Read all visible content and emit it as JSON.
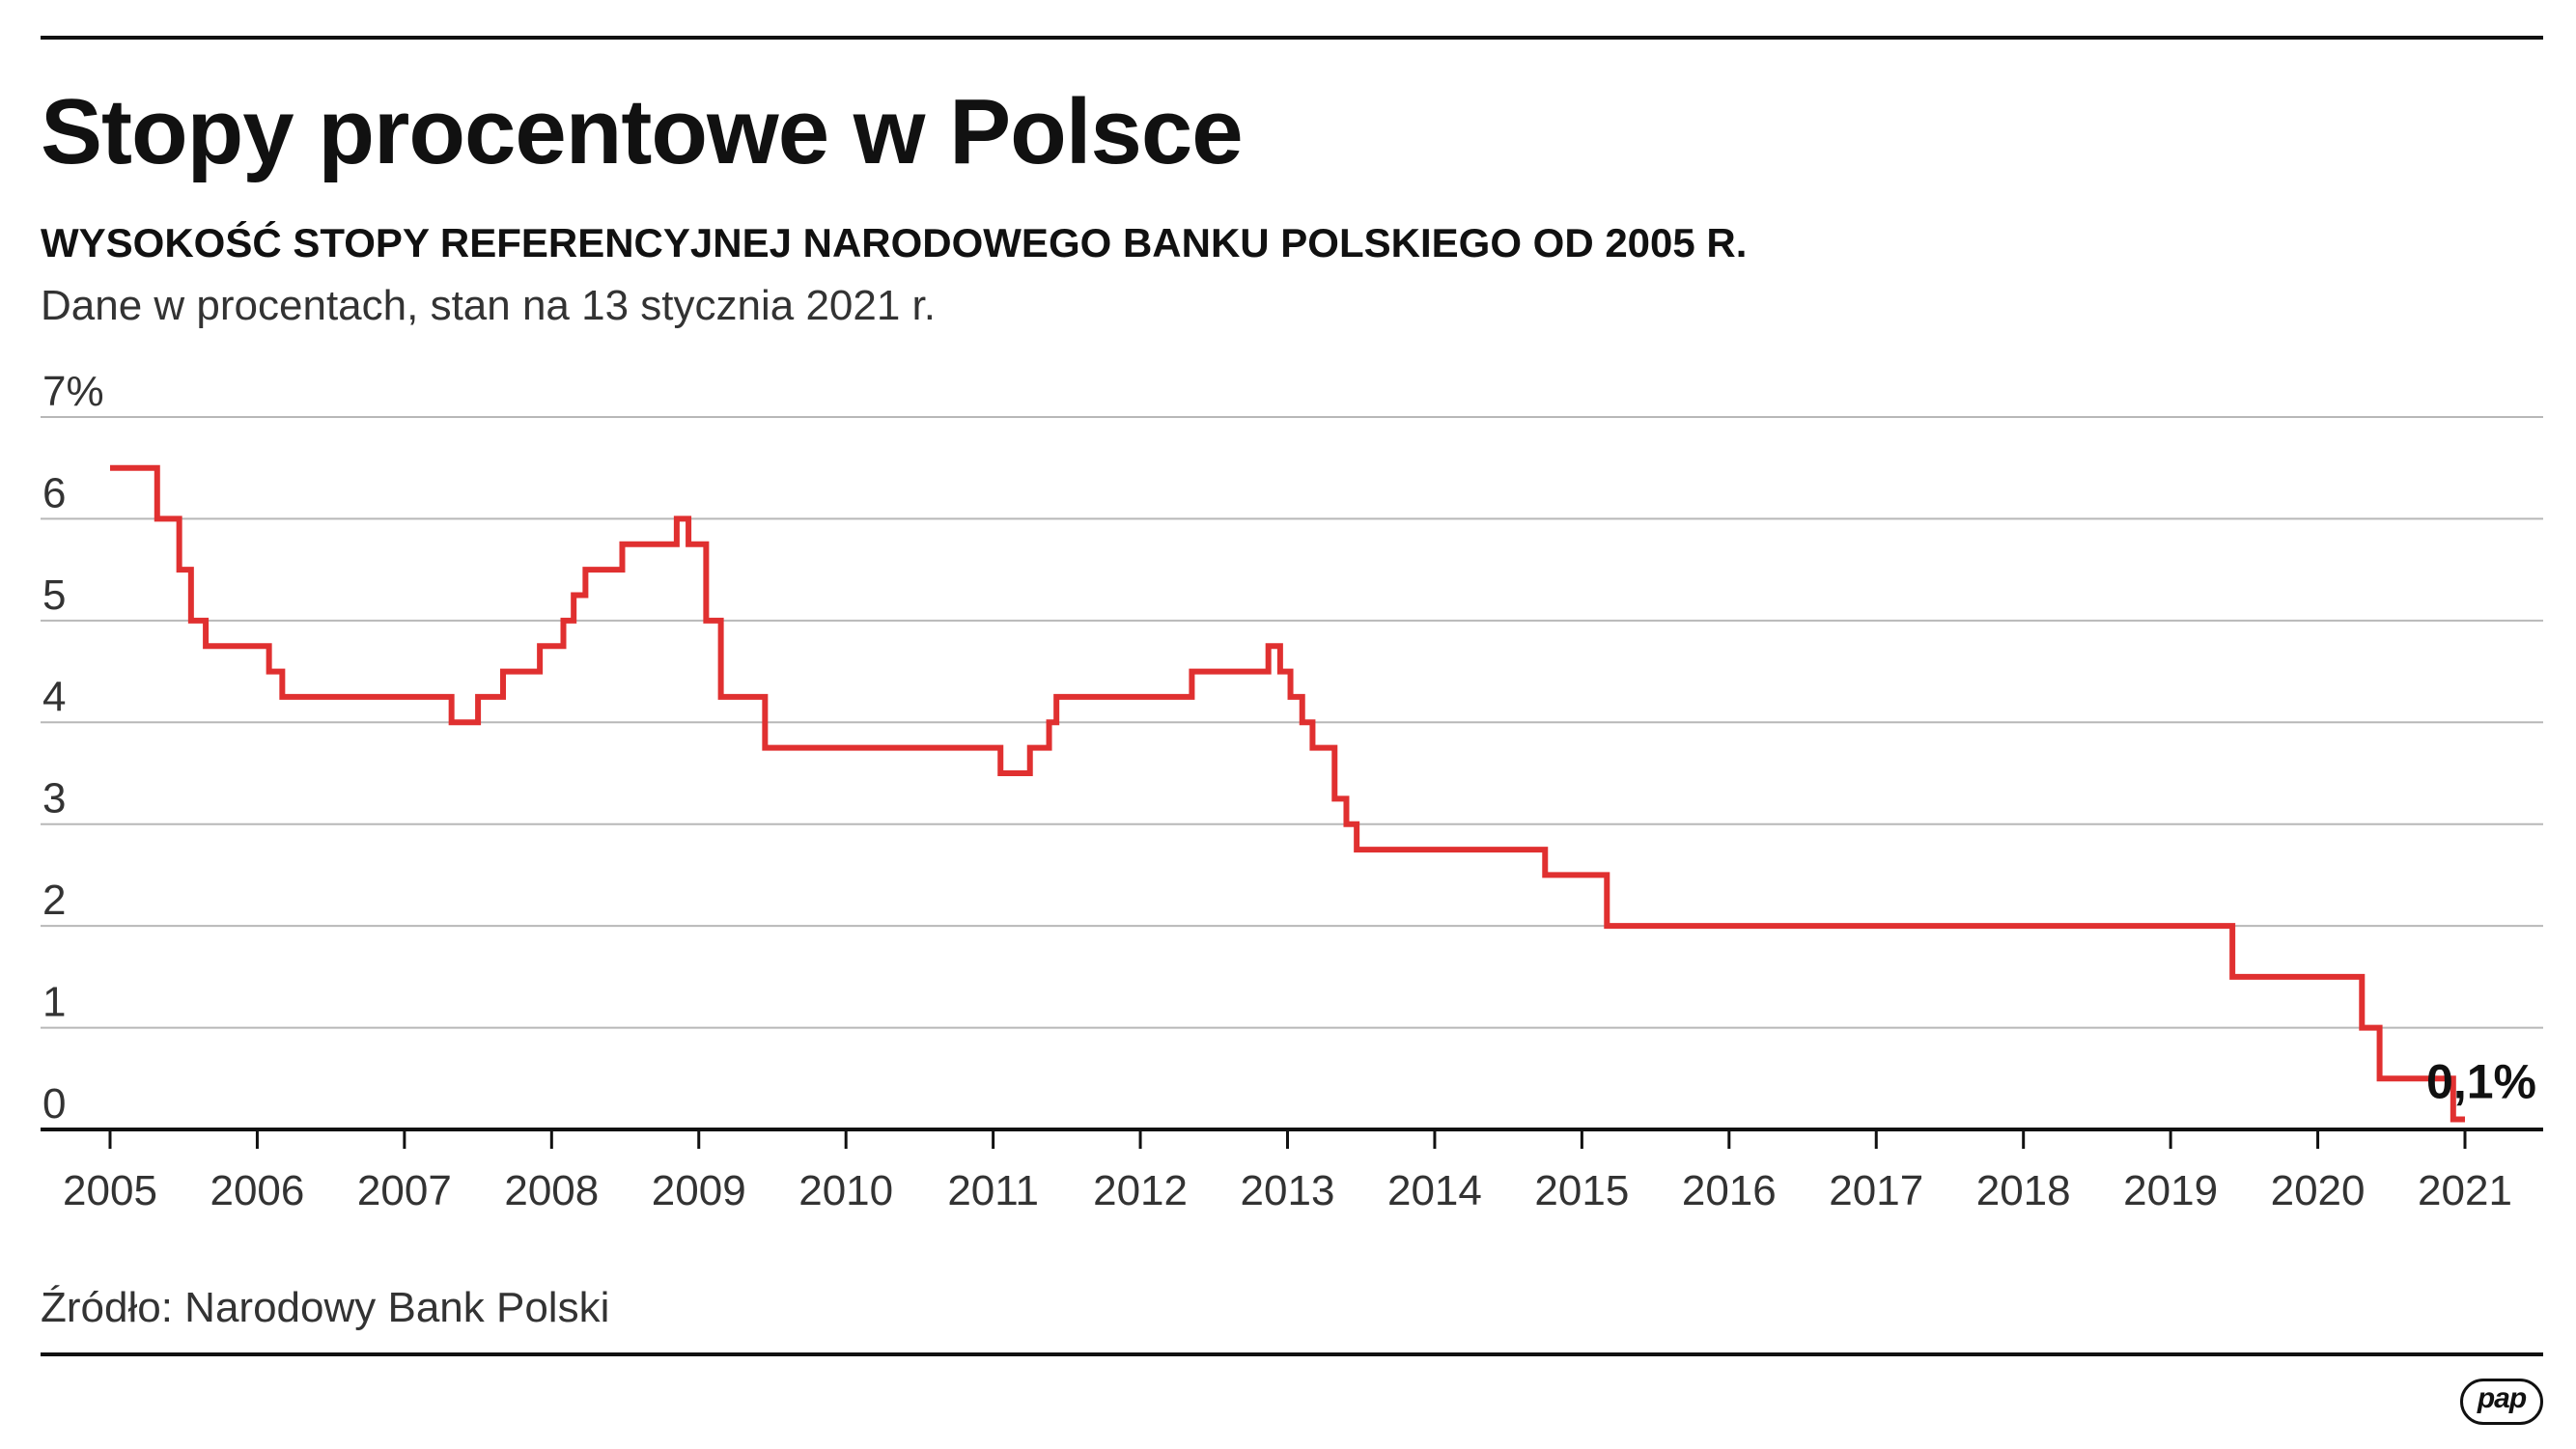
{
  "header": {
    "title": "Stopy procentowe w Polsce",
    "subtitle": "WYSOKOŚĆ STOPY REFERENCYJNEJ NARODOWEGO BANKU POLSKIEGO OD 2005 R.",
    "note": "Dane w procentach, stan na 13 stycznia 2021 r."
  },
  "footer": {
    "source": "Źródło: Narodowy Bank Polski",
    "logo_text": "pap"
  },
  "chart_data": {
    "type": "line",
    "step": true,
    "title": "Stopy procentowe w Polsce",
    "xlabel": "",
    "ylabel": "",
    "xlim": [
      2005,
      2021
    ],
    "ylim": [
      0,
      7
    ],
    "grid": true,
    "line_color": "#e03030",
    "y_ticks": [
      "0",
      "1",
      "2",
      "3",
      "4",
      "5",
      "6",
      "7%"
    ],
    "x_ticks": [
      "2005",
      "2006",
      "2007",
      "2008",
      "2009",
      "2010",
      "2011",
      "2012",
      "2013",
      "2014",
      "2015",
      "2016",
      "2017",
      "2018",
      "2019",
      "2020",
      "2021"
    ],
    "series": [
      {
        "x": [
          2005.0,
          2005.27,
          2005.32,
          2005.47,
          2005.55,
          2005.65,
          2006.08,
          2006.17,
          2007.32,
          2007.5,
          2007.67,
          2007.92,
          2008.08,
          2008.15,
          2008.23,
          2008.48,
          2008.85,
          2008.93,
          2009.05,
          2009.15,
          2009.45,
          2011.05,
          2011.25,
          2011.38,
          2011.43,
          2012.35,
          2012.87,
          2012.95,
          2013.02,
          2013.1,
          2013.17,
          2013.32,
          2013.4,
          2013.47,
          2014.75,
          2015.17,
          2019.42,
          2020.22,
          2020.3,
          2020.42,
          2020.92
        ],
        "y": [
          6.5,
          6.5,
          6.0,
          5.5,
          5.0,
          4.75,
          4.5,
          4.25,
          4.0,
          4.25,
          4.5,
          4.75,
          5.0,
          5.25,
          5.5,
          5.75,
          6.0,
          5.75,
          5.0,
          4.25,
          3.75,
          3.5,
          3.75,
          4.0,
          4.25,
          4.5,
          4.75,
          4.5,
          4.25,
          4.0,
          3.75,
          3.25,
          3.0,
          2.75,
          2.5,
          2.0,
          1.5,
          1.5,
          1.0,
          0.5,
          0.1
        ]
      }
    ],
    "end_x": 2021.0,
    "annotations": [
      {
        "text": "0,1%",
        "x": 2021.0,
        "y": 0.1
      }
    ]
  }
}
